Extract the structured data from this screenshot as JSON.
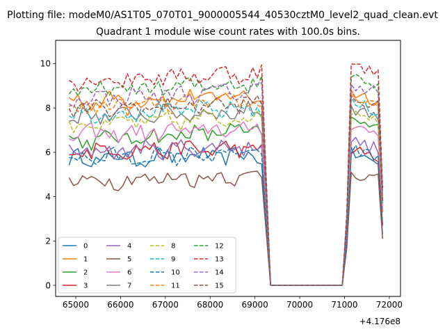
{
  "figure": {
    "suptitle": "Plotting file: modeM0/AS1T05_070T01_9000005544_40530cztM0_level2_quad_clean.evt"
  },
  "chart_data": {
    "type": "line",
    "title": "Quadrant 1 module wise count rates with 100.0s bins.",
    "xlabel": "",
    "ylabel": "",
    "x_offset_label": "+4.176e8",
    "x_offset": 417600000,
    "xlim": [
      64550,
      72250
    ],
    "ylim": [
      -0.5,
      11.05
    ],
    "xticks": [
      65000,
      66000,
      67000,
      68000,
      69000,
      70000,
      71000,
      72000
    ],
    "yticks": [
      0,
      2,
      4,
      6,
      8,
      10
    ],
    "grid": false,
    "legend": {
      "location": "lower left",
      "columns": 4
    },
    "segment_1": {
      "x_start": 64850,
      "x_step": 100,
      "points": 44
    },
    "gap": {
      "x": [
        69350,
        70950
      ],
      "y": 0
    },
    "segment_2": {
      "x_start": 71050,
      "x_step": 100,
      "points": 9
    },
    "series": [
      {
        "name": "0",
        "color": "#1f77b4",
        "dash": "solid",
        "level1": 5.7,
        "level2": 6.0,
        "end": 2.3
      },
      {
        "name": "1",
        "color": "#ff7f0e",
        "dash": "solid",
        "level1": 8.3,
        "level2": 8.8,
        "end": 3.3
      },
      {
        "name": "2",
        "color": "#2ca02c",
        "dash": "solid",
        "level1": 6.5,
        "level2": 7.5,
        "end": 3.7
      },
      {
        "name": "3",
        "color": "#d62728",
        "dash": "solid",
        "level1": 6.1,
        "level2": 6.2,
        "end": 2.7
      },
      {
        "name": "4",
        "color": "#9467bd",
        "dash": "solid",
        "level1": 6.0,
        "level2": 6.6,
        "end": 3.5
      },
      {
        "name": "5",
        "color": "#8c564b",
        "dash": "solid",
        "level1": 4.7,
        "level2": 5.2,
        "end": 2.1
      },
      {
        "name": "6",
        "color": "#e377c2",
        "dash": "solid",
        "level1": 6.8,
        "level2": 7.3,
        "end": 3.4
      },
      {
        "name": "7",
        "color": "#7f7f7f",
        "dash": "solid",
        "level1": 7.6,
        "level2": 8.1,
        "end": 3.9
      },
      {
        "name": "8",
        "color": "#bcbd22",
        "dash": "dashed",
        "level1": 7.2,
        "level2": 8.0,
        "end": 3.6
      },
      {
        "name": "9",
        "color": "#17becf",
        "dash": "dashed",
        "level1": 7.7,
        "level2": 8.3,
        "end": 3.8
      },
      {
        "name": "10",
        "color": "#1f77b4",
        "dash": "dashed",
        "level1": 5.7,
        "level2": 6.2,
        "end": 2.8
      },
      {
        "name": "11",
        "color": "#ff7f0e",
        "dash": "dashed",
        "level1": 8.0,
        "level2": 8.6,
        "end": 3.9
      },
      {
        "name": "12",
        "color": "#2ca02c",
        "dash": "dashed",
        "level1": 8.7,
        "level2": 9.6,
        "end": 4.4
      },
      {
        "name": "13",
        "color": "#d62728",
        "dash": "dashed",
        "level1": 9.2,
        "level2": 10.0,
        "end": 4.4
      },
      {
        "name": "14",
        "color": "#9467bd",
        "dash": "dashed",
        "level1": 8.4,
        "level2": 9.2,
        "end": 4.2
      },
      {
        "name": "15",
        "color": "#8c564b",
        "dash": "dashed",
        "level1": 7.9,
        "level2": 8.5,
        "end": 3.7
      }
    ]
  }
}
